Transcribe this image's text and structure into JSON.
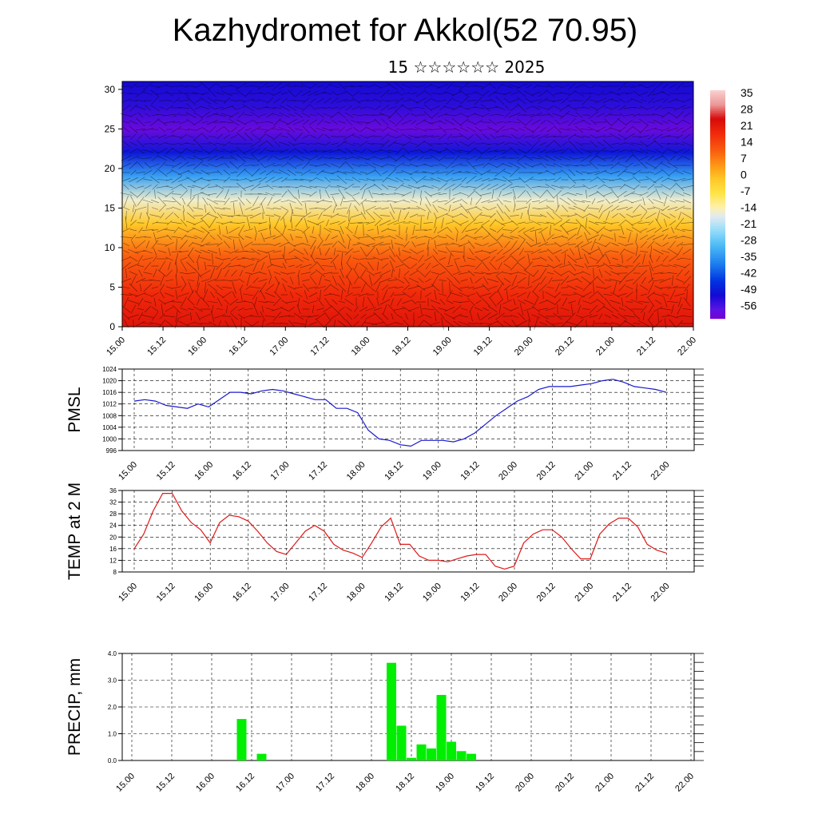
{
  "title": "Kazhydromet for Akkol(52 70.95)",
  "subtitle": "15 ☆☆☆☆☆☆ 2025",
  "x_tick_labels": [
    "15.00",
    "15.12",
    "16.00",
    "16.12",
    "17.00",
    "17.12",
    "18.00",
    "18.12",
    "19.00",
    "19.12",
    "20.00",
    "20.12",
    "21.00",
    "21.12",
    "22.00"
  ],
  "colors": {
    "pmsl_line": "#1a1ad0",
    "temp_line": "#dd1a1a",
    "precip_bar": "#00ee00",
    "grid": "#000000"
  },
  "chart_data": [
    {
      "type": "heatmap",
      "name": "temperature cross-section with wind vectors",
      "x_ticks": [
        "15.00",
        "15.12",
        "16.00",
        "16.12",
        "17.00",
        "17.12",
        "18.00",
        "18.12",
        "19.00",
        "19.12",
        "20.00",
        "20.12",
        "21.00",
        "21.12",
        "22.00"
      ],
      "y_ticks": [
        0,
        5,
        10,
        15,
        20,
        25,
        30
      ],
      "ylim": [
        0,
        31
      ],
      "colorbar_labels": [
        "35",
        "28",
        "21",
        "14",
        "7",
        "0",
        "-7",
        "-14",
        "-21",
        "-28",
        "-35",
        "-42",
        "-49",
        "-56"
      ],
      "colorbar_range": [
        -60,
        38
      ],
      "profile_levels": [
        0,
        4,
        9,
        13,
        16,
        19,
        22,
        25,
        28,
        31
      ],
      "profile_values": [
        24,
        20,
        12,
        0,
        -14,
        -32,
        -48,
        -58,
        -52,
        -50
      ]
    },
    {
      "type": "line",
      "ylabel": "PMSL",
      "ylim": [
        996,
        1024
      ],
      "yticks": [
        996,
        1000,
        1004,
        1008,
        1012,
        1016,
        1020,
        1024
      ],
      "x_ticks": [
        "15.00",
        "15.12",
        "16.00",
        "16.12",
        "17.00",
        "17.12",
        "18.00",
        "18.12",
        "19.00",
        "19.12",
        "20.00",
        "20.12",
        "21.00",
        "21.12",
        "22.00"
      ],
      "values": [
        1013,
        1013.5,
        1013,
        1011.5,
        1011,
        1010.5,
        1012,
        1011,
        1013.5,
        1016,
        1016,
        1015.5,
        1016.5,
        1017,
        1016.5,
        1015.5,
        1014.5,
        1013.5,
        1013.5,
        1010.5,
        1010.5,
        1009,
        1003,
        1000,
        999.5,
        998,
        997.5,
        999.5,
        999.5,
        999.5,
        999,
        1000,
        1002,
        1005,
        1008,
        1010.5,
        1013,
        1014.5,
        1017,
        1018,
        1018,
        1018,
        1018.5,
        1019,
        1020,
        1020.5,
        1019.5,
        1018,
        1017.5,
        1017,
        1016
      ]
    },
    {
      "type": "line",
      "ylabel": "TEMP at 2 M",
      "ylim": [
        8,
        36
      ],
      "yticks": [
        8,
        12,
        16,
        20,
        24,
        28,
        32,
        36
      ],
      "x_ticks": [
        "15.00",
        "15.12",
        "16.00",
        "16.12",
        "17.00",
        "17.12",
        "18.00",
        "18.12",
        "19.00",
        "19.12",
        "20.00",
        "20.12",
        "21.00",
        "21.12",
        "22.00"
      ],
      "values": [
        16,
        21,
        29,
        35,
        35,
        29,
        25,
        22.5,
        18,
        25,
        27.5,
        27,
        25.5,
        22,
        18,
        15,
        14,
        18,
        22,
        24,
        22,
        17.5,
        15.5,
        14.5,
        13,
        18,
        23.5,
        26.5,
        17.5,
        17.5,
        13.5,
        12,
        12,
        11.5,
        12.5,
        13.5,
        14,
        14,
        10,
        9,
        10,
        18,
        21,
        22.5,
        22.5,
        20,
        16,
        12.5,
        12.5,
        21,
        24.5,
        26.5,
        26.5,
        23.5,
        17.5,
        15.5,
        14.5
      ]
    },
    {
      "type": "bar",
      "ylabel": "PRECIP, mm",
      "ylim": [
        0,
        4
      ],
      "yticks": [
        "0.0",
        "1.0",
        "2.0",
        "3.0",
        "4.0"
      ],
      "x_ticks": [
        "15.00",
        "15.12",
        "16.00",
        "16.12",
        "17.00",
        "17.12",
        "18.00",
        "18.12",
        "19.00",
        "19.12",
        "20.00",
        "20.12",
        "21.00",
        "21.12",
        "22.00"
      ],
      "bars": [
        {
          "x": 16.375,
          "value": 1.55
        },
        {
          "x": 16.625,
          "value": 0.25
        },
        {
          "x": 18.25,
          "value": 3.65
        },
        {
          "x": 18.375,
          "value": 1.3
        },
        {
          "x": 18.5,
          "value": 0.1
        },
        {
          "x": 18.625,
          "value": 0.6
        },
        {
          "x": 18.75,
          "value": 0.45
        },
        {
          "x": 18.875,
          "value": 2.45
        },
        {
          "x": 19.0,
          "value": 0.7
        },
        {
          "x": 19.125,
          "value": 0.35
        },
        {
          "x": 19.25,
          "value": 0.25
        }
      ]
    }
  ]
}
